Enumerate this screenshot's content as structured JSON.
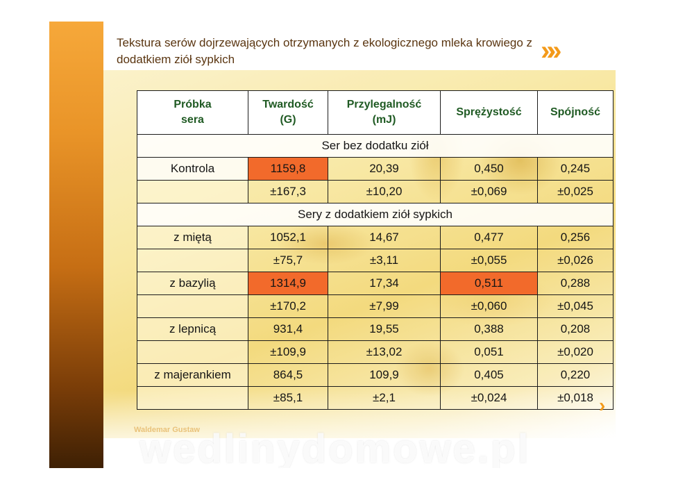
{
  "slide": {
    "title": "Tekstura serów dojrzewających otrzymanych z ekologicznego mleka krowiego z dodatkiem ziół sypkich",
    "author": "Waldemar Gustaw",
    "watermark": "wedlinydomowe.pl",
    "chevrons_big": "»»",
    "chevron_small": "›"
  },
  "colors": {
    "accent": "#f39a1a",
    "highlight": "#f26a2b",
    "header_text": "#1f5a23",
    "title_text": "#5a3510"
  },
  "table": {
    "headers": [
      {
        "line1": "Próbka",
        "line2": "sera"
      },
      {
        "line1": "Twardość",
        "line2": "(G)"
      },
      {
        "line1": "Przylegalność",
        "line2": "(mJ)"
      },
      {
        "line1": "Sprężystość",
        "line2": ""
      },
      {
        "line1": "Spójność",
        "line2": ""
      }
    ],
    "section1": "Ser bez dodatku ziół",
    "section2": "Sery z dodatkiem ziół sypkich",
    "rows": [
      {
        "name": "Kontrola",
        "means": [
          "1159,8",
          "20,39",
          "0,450",
          "0,245"
        ],
        "sds": [
          "±167,3",
          "±10,20",
          "±0,069",
          "±0,025"
        ]
      },
      {
        "name": "z miętą",
        "means": [
          "1052,1",
          "14,67",
          "0,477",
          "0,256"
        ],
        "sds": [
          "±75,7",
          "±3,11",
          "±0,055",
          "±0,026"
        ]
      },
      {
        "name": "z bazylią",
        "means": [
          "1314,9",
          "17,34",
          "0,511",
          "0,288"
        ],
        "sds": [
          "±170,2",
          "±7,99",
          "±0,060",
          "±0,045"
        ]
      },
      {
        "name": "z lepnicą",
        "means": [
          "931,4",
          "19,55",
          "0,388",
          "0,208"
        ],
        "sds": [
          "±109,9",
          "±13,02",
          "0,051",
          "±0,020"
        ]
      },
      {
        "name": "z majerankiem",
        "means": [
          "864,5",
          "109,9",
          "0,405",
          "0,220"
        ],
        "sds": [
          "±85,1",
          "±2,1",
          "±0,024",
          "±0,018"
        ]
      }
    ]
  }
}
